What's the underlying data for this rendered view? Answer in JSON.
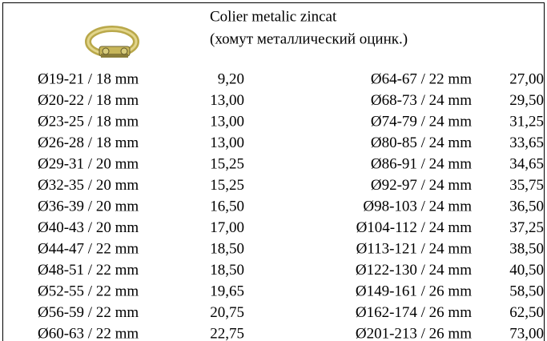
{
  "header": {
    "title_lines": [
      "Colier metalic zincat",
      "(хомут металлический оцинк.)"
    ]
  },
  "table": {
    "left": [
      [
        "Ø19-21 / 18 mm",
        "9,20"
      ],
      [
        "Ø20-22 / 18 mm",
        "13,00"
      ],
      [
        "Ø23-25 / 18 mm",
        "13,00"
      ],
      [
        "Ø26-28 / 18 mm",
        "13,00"
      ],
      [
        "Ø29-31 / 20 mm",
        "15,25"
      ],
      [
        "Ø32-35 / 20 mm",
        "15,25"
      ],
      [
        "Ø36-39 / 20 mm",
        "16,50"
      ],
      [
        "Ø40-43 / 20 mm",
        "17,00"
      ],
      [
        "Ø44-47 / 22 mm",
        "18,50"
      ],
      [
        "Ø48-51 / 22 mm",
        "18,50"
      ],
      [
        "Ø52-55 / 22 mm",
        "19,65"
      ],
      [
        "Ø56-59 / 22 mm",
        "20,75"
      ],
      [
        "Ø60-63 / 22 mm",
        "22,75"
      ]
    ],
    "right": [
      [
        "Ø64-67 / 22 mm",
        "27,00"
      ],
      [
        "Ø68-73 / 24 mm",
        "29,50"
      ],
      [
        "Ø74-79 / 24 mm",
        "31,25"
      ],
      [
        "Ø80-85 / 24 mm",
        "33,65"
      ],
      [
        "Ø86-91 / 24 mm",
        "34,65"
      ],
      [
        "Ø92-97 / 24 mm",
        "35,75"
      ],
      [
        "Ø98-103 / 24 mm",
        "36,50"
      ],
      [
        "Ø104-112 / 24 mm",
        "37,25"
      ],
      [
        "Ø113-121 / 24 mm",
        "38,50"
      ],
      [
        "Ø122-130 / 24 mm",
        "40,50"
      ],
      [
        "Ø149-161 / 26 mm",
        "58,50"
      ],
      [
        "Ø162-174 / 26 mm",
        "62,50"
      ],
      [
        "Ø201-213 / 26 mm",
        "73,00"
      ]
    ]
  }
}
